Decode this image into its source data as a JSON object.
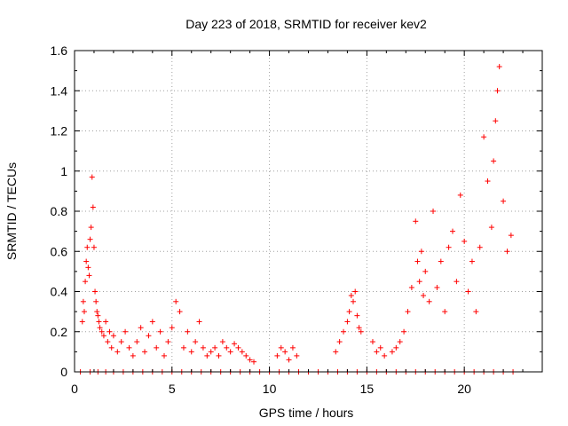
{
  "chart_data": {
    "type": "scatter",
    "title": "Day 223 of 2018, SRMTID for receiver kev2",
    "xlabel": "GPS time / hours",
    "ylabel": "SRMTID / TECUs",
    "xlim": [
      0,
      24
    ],
    "ylim": [
      0,
      1.6
    ],
    "xticks": [
      0,
      5,
      10,
      15,
      20
    ],
    "xtick_labels": [
      "0",
      "5",
      "10",
      "15",
      "20"
    ],
    "yticks": [
      0,
      0.2,
      0.4,
      0.6,
      0.8,
      1.0,
      1.2,
      1.4,
      1.6
    ],
    "ytick_labels": [
      "0",
      "0.2",
      "0.4",
      "0.6",
      "0.8",
      "1",
      "1.2",
      "1.4",
      "1.6"
    ],
    "grid": true,
    "marker": "+",
    "color": "#ff0000",
    "series": [
      {
        "name": "kev2",
        "x": [
          0.4,
          0.45,
          0.5,
          0.55,
          0.6,
          0.65,
          0.7,
          0.75,
          0.8,
          0.85,
          0.9,
          0.95,
          1.0,
          1.05,
          1.1,
          1.15,
          1.2,
          1.25,
          1.3,
          1.4,
          1.5,
          1.6,
          1.7,
          1.8,
          1.9,
          2.0,
          2.2,
          2.4,
          2.6,
          2.8,
          3.0,
          3.2,
          3.4,
          3.6,
          3.8,
          4.0,
          4.2,
          4.4,
          4.6,
          4.8,
          5.0,
          5.2,
          5.4,
          5.6,
          5.8,
          6.0,
          6.2,
          6.4,
          6.6,
          6.8,
          7.0,
          7.2,
          7.4,
          7.6,
          7.8,
          8.0,
          8.2,
          8.4,
          8.6,
          8.8,
          9.0,
          9.2,
          10.4,
          10.6,
          10.8,
          11.0,
          11.2,
          11.4,
          13.4,
          13.6,
          13.8,
          14.0,
          14.1,
          14.2,
          14.3,
          14.4,
          14.5,
          14.6,
          14.7,
          15.3,
          15.5,
          15.7,
          15.9,
          16.3,
          16.5,
          16.7,
          16.9,
          17.1,
          17.3,
          17.5,
          17.6,
          17.7,
          17.8,
          17.9,
          18.0,
          18.2,
          18.4,
          18.6,
          18.8,
          19.0,
          19.2,
          19.4,
          19.6,
          19.8,
          20.0,
          20.2,
          20.4,
          20.6,
          20.8,
          21.0,
          21.2,
          21.4,
          21.5,
          21.6,
          21.7,
          21.8,
          22.0,
          22.2,
          22.4,
          0.3,
          0.8,
          1.2,
          1.6,
          2.0,
          2.5,
          3.0,
          3.5,
          4.0,
          4.5,
          5.0,
          5.5,
          6.0,
          6.5,
          7.0,
          7.5,
          8.0,
          8.5,
          9.0,
          9.5,
          10.0,
          10.5,
          11.0,
          11.5,
          12.0,
          12.5,
          13.0,
          13.5,
          14.0,
          14.5,
          15.0,
          15.5,
          16.0,
          16.5,
          17.0,
          17.5,
          18.0,
          18.5,
          19.0,
          19.5,
          20.0,
          20.5,
          21.0,
          21.5,
          22.0,
          22.5
        ],
        "y": [
          0.25,
          0.35,
          0.3,
          0.45,
          0.55,
          0.62,
          0.52,
          0.48,
          0.66,
          0.72,
          0.97,
          0.82,
          0.62,
          0.4,
          0.35,
          0.3,
          0.28,
          0.25,
          0.22,
          0.2,
          0.18,
          0.25,
          0.15,
          0.2,
          0.12,
          0.18,
          0.1,
          0.15,
          0.2,
          0.12,
          0.08,
          0.15,
          0.22,
          0.1,
          0.18,
          0.25,
          0.12,
          0.2,
          0.08,
          0.15,
          0.22,
          0.35,
          0.3,
          0.12,
          0.2,
          0.1,
          0.15,
          0.25,
          0.12,
          0.08,
          0.1,
          0.12,
          0.08,
          0.15,
          0.12,
          0.1,
          0.14,
          0.12,
          0.1,
          0.08,
          0.06,
          0.05,
          0.08,
          0.12,
          0.1,
          0.06,
          0.12,
          0.08,
          0.1,
          0.15,
          0.2,
          0.25,
          0.3,
          0.38,
          0.35,
          0.4,
          0.28,
          0.22,
          0.2,
          0.15,
          0.1,
          0.12,
          0.08,
          0.1,
          0.12,
          0.15,
          0.2,
          0.3,
          0.42,
          0.75,
          0.55,
          0.45,
          0.6,
          0.38,
          0.5,
          0.35,
          0.8,
          0.42,
          0.55,
          0.3,
          0.62,
          0.7,
          0.45,
          0.88,
          0.65,
          0.4,
          0.55,
          0.3,
          0.62,
          1.17,
          0.95,
          0.72,
          1.05,
          1.25,
          1.4,
          1.52,
          0.85,
          0.6,
          0.68,
          0,
          0,
          0,
          0,
          0,
          0,
          0,
          0,
          0,
          0,
          0,
          0,
          0,
          0,
          0,
          0,
          0,
          0,
          0,
          0,
          0,
          0,
          0,
          0,
          0,
          0,
          0,
          0,
          0,
          0,
          0,
          0,
          0,
          0,
          0,
          0,
          0,
          0,
          0,
          0,
          0,
          0,
          0,
          0,
          0,
          0
        ]
      }
    ]
  }
}
